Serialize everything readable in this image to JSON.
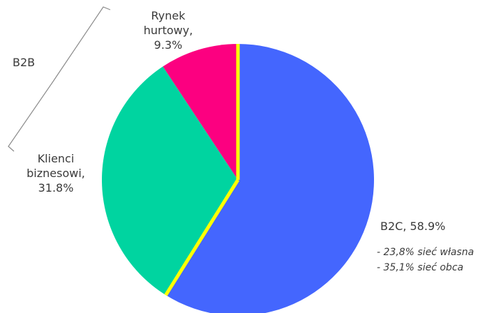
{
  "chart_data": {
    "type": "pie",
    "title": "",
    "slices": [
      {
        "label": "B2C",
        "value": 58.9,
        "display": "B2C, 58.9%",
        "color": "#4466fe"
      },
      {
        "label": "Klienci biznesowi",
        "value": 31.8,
        "display_lines": [
          "Klienci",
          "biznesowi,",
          "31.8%"
        ],
        "color": "#00d4a0"
      },
      {
        "label": "Rynek hurtowy",
        "value": 9.3,
        "display_lines": [
          "Rynek",
          "hurtowy,",
          "9.3%"
        ],
        "color": "#fc0080"
      }
    ],
    "separator_color": "#ffff00",
    "b2c_breakdown": [
      "-   23,8% sieć własna",
      "-   35,1% sieć obca"
    ],
    "group_label": "B2B"
  }
}
